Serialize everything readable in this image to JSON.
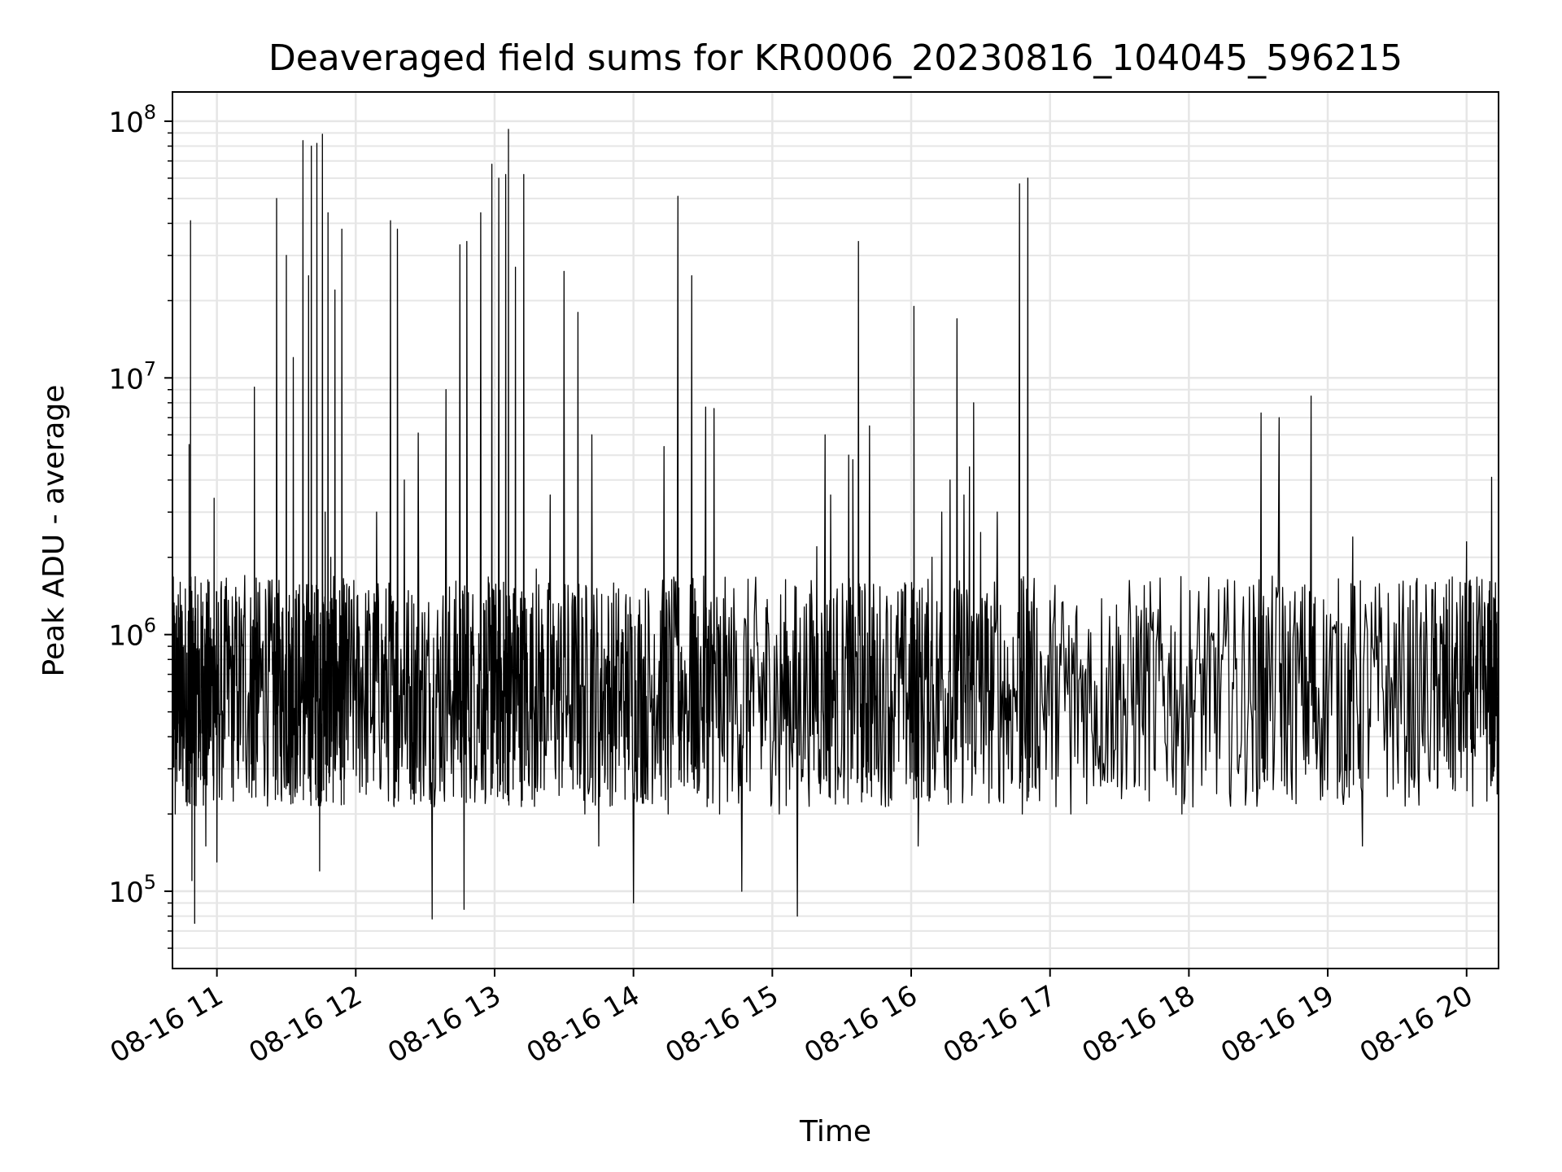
{
  "chart_data": {
    "type": "line",
    "title": "Deaveraged field sums for KR0006_20230816_104045_596215",
    "xlabel": "Time",
    "ylabel": "Peak ADU - average",
    "x_ticks": [
      "08-16 11",
      "08-16 12",
      "08-16 13",
      "08-16 14",
      "08-16 15",
      "08-16 16",
      "08-16 17",
      "08-16 18",
      "08-16 19",
      "08-16 20"
    ],
    "x_range_hours": [
      10.68,
      20.23
    ],
    "yscale": "log",
    "ylim": [
      50000,
      130000000
    ],
    "y_ticks": [
      {
        "base": "10",
        "exp": "5",
        "value": 100000
      },
      {
        "base": "10",
        "exp": "6",
        "value": 1000000
      },
      {
        "base": "10",
        "exp": "7",
        "value": 10000000
      },
      {
        "base": "10",
        "exp": "8",
        "value": 100000000
      }
    ],
    "grid": true,
    "line_color": "#000000",
    "grid_color": "#e6e6e6",
    "series": [
      {
        "values": [
          [
            10.68,
            300000
          ],
          [
            10.7,
            200000
          ],
          [
            10.72,
            450000
          ],
          [
            10.74,
            300000
          ],
          [
            10.76,
            400000
          ],
          [
            10.79,
            250000
          ],
          [
            10.8,
            5500000
          ],
          [
            10.81,
            41000000
          ],
          [
            10.82,
            110000
          ],
          [
            10.84,
            75000
          ],
          [
            10.86,
            600000
          ],
          [
            10.88,
            350000
          ],
          [
            10.9,
            800000
          ],
          [
            10.92,
            150000
          ],
          [
            10.95,
            600000
          ],
          [
            10.98,
            3400000
          ],
          [
            11.0,
            130000
          ],
          [
            11.05,
            700000
          ],
          [
            11.1,
            900000
          ],
          [
            11.15,
            600000
          ],
          [
            11.2,
            1700000
          ],
          [
            11.25,
            800000
          ],
          [
            11.27,
            9200000
          ],
          [
            11.3,
            500000
          ],
          [
            11.35,
            1500000
          ],
          [
            11.4,
            700000
          ],
          [
            11.43,
            50000000
          ],
          [
            11.46,
            600000
          ],
          [
            11.5,
            30000000
          ],
          [
            11.53,
            800000
          ],
          [
            11.55,
            12000000
          ],
          [
            11.58,
            400000
          ],
          [
            11.62,
            84000000
          ],
          [
            11.64,
            1000000
          ],
          [
            11.66,
            25000000
          ],
          [
            11.68,
            80000000
          ],
          [
            11.7,
            1200000
          ],
          [
            11.72,
            82000000
          ],
          [
            11.74,
            120000
          ],
          [
            11.76,
            89000000
          ],
          [
            11.78,
            3000000
          ],
          [
            11.8,
            44000000
          ],
          [
            11.82,
            2000000
          ],
          [
            11.85,
            22000000
          ],
          [
            11.88,
            900000
          ],
          [
            11.9,
            38000000
          ],
          [
            11.92,
            300000
          ],
          [
            11.95,
            1500000
          ],
          [
            12.0,
            800000
          ],
          [
            12.05,
            900000
          ],
          [
            12.1,
            1200000
          ],
          [
            12.15,
            3000000
          ],
          [
            12.2,
            700000
          ],
          [
            12.25,
            41000000
          ],
          [
            12.28,
            800000
          ],
          [
            12.3,
            38000000
          ],
          [
            12.35,
            4000000
          ],
          [
            12.4,
            600000
          ],
          [
            12.45,
            6100000
          ],
          [
            12.5,
            400000
          ],
          [
            12.55,
            78000
          ],
          [
            12.6,
            700000
          ],
          [
            12.65,
            9000000
          ],
          [
            12.7,
            600000
          ],
          [
            12.75,
            33000000
          ],
          [
            12.78,
            85000
          ],
          [
            12.8,
            34000000
          ],
          [
            12.85,
            900000
          ],
          [
            12.9,
            44000000
          ],
          [
            12.95,
            700000
          ],
          [
            12.98,
            68000000
          ],
          [
            13.0,
            1300000
          ],
          [
            13.03,
            60000000
          ],
          [
            13.06,
            500000
          ],
          [
            13.08,
            62000000
          ],
          [
            13.1,
            93000000
          ],
          [
            13.12,
            900000
          ],
          [
            13.15,
            27000000
          ],
          [
            13.18,
            700000
          ],
          [
            13.21,
            62000000
          ],
          [
            13.24,
            500000
          ],
          [
            13.3,
            1800000
          ],
          [
            13.35,
            600000
          ],
          [
            13.4,
            3500000
          ],
          [
            13.45,
            700000
          ],
          [
            13.5,
            26000000
          ],
          [
            13.55,
            300000
          ],
          [
            13.6,
            18000000
          ],
          [
            13.65,
            200000
          ],
          [
            13.7,
            6000000
          ],
          [
            13.75,
            150000
          ],
          [
            13.8,
            800000
          ],
          [
            13.85,
            300000
          ],
          [
            13.9,
            600000
          ],
          [
            13.95,
            400000
          ],
          [
            14.0,
            90000
          ],
          [
            14.05,
            600000
          ],
          [
            14.1,
            300000
          ],
          [
            14.15,
            1000000
          ],
          [
            14.22,
            5400000
          ],
          [
            14.25,
            200000
          ],
          [
            14.32,
            51000000
          ],
          [
            14.35,
            500000
          ],
          [
            14.42,
            25000000
          ],
          [
            14.45,
            300000
          ],
          [
            14.52,
            7700000
          ],
          [
            14.55,
            400000
          ],
          [
            14.58,
            7600000
          ],
          [
            14.62,
            200000
          ],
          [
            14.7,
            800000
          ],
          [
            14.78,
            100000
          ],
          [
            14.85,
            600000
          ],
          [
            14.92,
            300000
          ],
          [
            14.98,
            700000
          ],
          [
            15.05,
            200000
          ],
          [
            15.12,
            500000
          ],
          [
            15.18,
            80000
          ],
          [
            15.25,
            700000
          ],
          [
            15.32,
            2200000
          ],
          [
            15.38,
            6000000
          ],
          [
            15.42,
            3500000
          ],
          [
            15.48,
            300000
          ],
          [
            15.55,
            5000000
          ],
          [
            15.58,
            4800000
          ],
          [
            15.62,
            34000000
          ],
          [
            15.66,
            400000
          ],
          [
            15.7,
            6500000
          ],
          [
            15.75,
            300000
          ],
          [
            15.82,
            1200000
          ],
          [
            15.88,
            700000
          ],
          [
            15.95,
            900000
          ],
          [
            16.0,
            500000
          ],
          [
            16.02,
            19000000
          ],
          [
            16.05,
            150000
          ],
          [
            16.1,
            1200000
          ],
          [
            16.15,
            2000000
          ],
          [
            16.22,
            3000000
          ],
          [
            16.28,
            4000000
          ],
          [
            16.33,
            17000000
          ],
          [
            16.38,
            3500000
          ],
          [
            16.42,
            4500000
          ],
          [
            16.45,
            8000000
          ],
          [
            16.5,
            2500000
          ],
          [
            16.55,
            600000
          ],
          [
            16.62,
            3000000
          ],
          [
            16.7,
            300000
          ],
          [
            16.78,
            57000000
          ],
          [
            16.8,
            200000
          ],
          [
            16.84,
            60000000
          ],
          [
            16.86,
            700000
          ],
          [
            16.95,
            500000
          ],
          [
            17.05,
            900000
          ],
          [
            17.15,
            200000
          ],
          [
            17.25,
            700000
          ],
          [
            17.35,
            300000
          ],
          [
            17.45,
            900000
          ],
          [
            17.55,
            250000
          ],
          [
            17.65,
            1000000
          ],
          [
            17.75,
            300000
          ],
          [
            17.85,
            700000
          ],
          [
            17.95,
            200000
          ],
          [
            18.05,
            800000
          ],
          [
            18.15,
            350000
          ],
          [
            18.25,
            1000000
          ],
          [
            18.35,
            300000
          ],
          [
            18.45,
            500000
          ],
          [
            18.52,
            7300000
          ],
          [
            18.55,
            300000
          ],
          [
            18.65,
            7000000
          ],
          [
            18.7,
            400000
          ],
          [
            18.8,
            900000
          ],
          [
            18.88,
            8500000
          ],
          [
            18.92,
            300000
          ],
          [
            19.02,
            1200000
          ],
          [
            19.12,
            250000
          ],
          [
            19.18,
            2400000
          ],
          [
            19.25,
            150000
          ],
          [
            19.35,
            800000
          ],
          [
            19.45,
            400000
          ],
          [
            19.55,
            700000
          ],
          [
            19.65,
            300000
          ],
          [
            19.75,
            1500000
          ],
          [
            19.8,
            700000
          ],
          [
            19.85,
            900000
          ],
          [
            19.9,
            250000
          ],
          [
            19.95,
            350000
          ],
          [
            20.0,
            2300000
          ],
          [
            20.04,
            500000
          ],
          [
            20.1,
            400000
          ],
          [
            20.15,
            600000
          ],
          [
            20.18,
            4100000
          ],
          [
            20.21,
            700000
          ],
          [
            20.23,
            500000
          ]
        ]
      }
    ]
  }
}
